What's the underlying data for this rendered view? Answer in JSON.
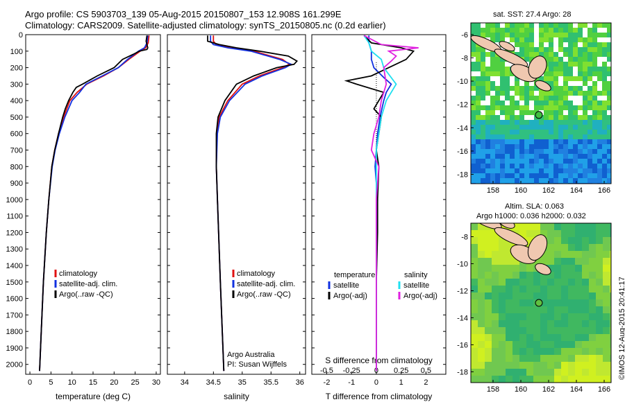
{
  "header": {
    "line1": "Argo profile: CS 5903703_139 05-Aug-2015 20150807_153 12.908S 161.299E",
    "line2": "Climatology: CARS2009. Satellite-adjusted climatology: synTS_20150805.nc (0.2d earlier)"
  },
  "credit": {
    "line1": "Argo Australia",
    "line2": "PI: Susan Wijffels"
  },
  "stamp": "©IMOS 12-Aug-2015 20:41:17",
  "colors": {
    "climatology": "#e01010",
    "satellite": "#1030e0",
    "argo": "#000000",
    "sal_sat": "#20e0f0",
    "sal_argo": "#e020e0"
  },
  "chart_data": [
    {
      "type": "line",
      "xlabel": "temperature (deg C)",
      "xlim": [
        -1,
        31
      ],
      "ylim": [
        2060,
        0
      ],
      "xticks": [
        "0",
        "5",
        "10",
        "15",
        "20",
        "25",
        "30"
      ],
      "xtick_values": [
        0,
        5,
        10,
        15,
        20,
        25,
        30
      ],
      "yticks": [
        "0",
        "100",
        "200",
        "300",
        "400",
        "500",
        "600",
        "700",
        "800",
        "900",
        "1000",
        "1100",
        "1200",
        "1300",
        "1400",
        "1500",
        "1600",
        "1700",
        "1800",
        "1900",
        "2000"
      ],
      "ytick_values": [
        0,
        100,
        200,
        300,
        400,
        500,
        600,
        700,
        800,
        900,
        1000,
        1100,
        1200,
        1300,
        1400,
        1500,
        1600,
        1700,
        1800,
        1900,
        2000
      ],
      "legend": [
        "climatology",
        "satellite-adj. clim.",
        "Argo(..raw -QC)"
      ],
      "series": [
        {
          "name": "climatology",
          "color": "#e01010",
          "depth": [
            5,
            50,
            80,
            100,
            150,
            200,
            250,
            300,
            350,
            400,
            500,
            600,
            700,
            800,
            1000,
            1200,
            1500,
            1800,
            2040
          ],
          "values": [
            28.3,
            28.1,
            27.5,
            26.2,
            23.5,
            21.0,
            17.5,
            13.5,
            11.2,
            9.5,
            8.0,
            6.8,
            5.9,
            5.2,
            4.5,
            3.9,
            3.2,
            2.7,
            2.3
          ]
        },
        {
          "name": "satellite-adj. clim.",
          "color": "#1030e0",
          "depth": [
            5,
            50,
            80,
            100,
            150,
            200,
            250,
            300,
            350,
            400,
            500,
            600,
            700,
            800,
            1000,
            1200,
            1500,
            1800,
            2040
          ],
          "values": [
            28.0,
            27.8,
            27.2,
            25.8,
            23.2,
            21.0,
            17.2,
            13.3,
            11.8,
            10.0,
            8.3,
            7.0,
            6.0,
            5.3,
            4.5,
            3.9,
            3.2,
            2.7,
            2.3
          ]
        },
        {
          "name": "Argo(..raw -QC)",
          "color": "#000000",
          "depth": [
            5,
            40,
            80,
            90,
            100,
            120,
            150,
            200,
            250,
            300,
            320,
            350,
            400,
            450,
            500,
            600,
            700,
            800,
            1000,
            1200,
            1500,
            1800,
            2040
          ],
          "values": [
            27.8,
            27.6,
            28.0,
            27.8,
            26.0,
            24.5,
            22.0,
            20.0,
            16.0,
            12.5,
            11.0,
            10.2,
            9.2,
            8.4,
            7.8,
            6.8,
            5.9,
            5.2,
            4.5,
            3.9,
            3.2,
            2.7,
            2.3
          ]
        }
      ]
    },
    {
      "type": "line",
      "xlabel": "salinity",
      "xlim": [
        33.7,
        36.1
      ],
      "ylim": [
        2060,
        0
      ],
      "xticks": [
        "34",
        "34.5",
        "35",
        "35.5",
        "36"
      ],
      "xtick_values": [
        34,
        34.5,
        35,
        35.5,
        36
      ],
      "legend": [
        "climatology",
        "satellite-adj. clim.",
        "Argo(..raw -QC)"
      ],
      "series": [
        {
          "name": "climatology",
          "color": "#e01010",
          "depth": [
            5,
            40,
            60,
            80,
            100,
            150,
            180,
            200,
            250,
            300,
            400,
            500,
            600,
            800,
            1000,
            1500,
            2040
          ],
          "values": [
            34.5,
            34.5,
            34.55,
            34.8,
            35.2,
            35.7,
            35.82,
            35.7,
            35.3,
            35.0,
            34.75,
            34.6,
            34.56,
            34.55,
            34.57,
            34.62,
            34.68
          ]
        },
        {
          "name": "satellite-adj. clim.",
          "color": "#1030e0",
          "depth": [
            5,
            40,
            60,
            80,
            100,
            150,
            180,
            200,
            250,
            300,
            400,
            500,
            600,
            800,
            1000,
            1500,
            2040
          ],
          "values": [
            34.45,
            34.45,
            34.5,
            34.75,
            35.15,
            35.65,
            35.85,
            35.75,
            35.35,
            35.05,
            34.78,
            34.62,
            34.57,
            34.55,
            34.57,
            34.62,
            34.68
          ]
        },
        {
          "name": "Argo(..raw -QC)",
          "color": "#000000",
          "depth": [
            5,
            40,
            60,
            80,
            100,
            130,
            160,
            180,
            200,
            250,
            300,
            400,
            500,
            600,
            800,
            1000,
            1500,
            2040
          ],
          "values": [
            34.4,
            34.4,
            34.6,
            34.9,
            35.3,
            35.8,
            35.95,
            35.9,
            35.6,
            35.2,
            34.9,
            34.7,
            34.58,
            34.55,
            34.55,
            34.57,
            34.62,
            34.68
          ]
        }
      ]
    },
    {
      "type": "line",
      "xlabel": "T difference from climatology",
      "xlabel_top": "S difference from climatology",
      "xlim": [
        -2.6,
        2.8
      ],
      "ylim": [
        2060,
        0
      ],
      "xticks": [
        "-2",
        "-1",
        "0",
        "1",
        "2"
      ],
      "xtick_values": [
        -2,
        -1,
        0,
        1,
        2
      ],
      "s_xticks": [
        "-0.5",
        "-0.25",
        "0",
        "0.25",
        "0.5"
      ],
      "s_xtick_positions": [
        -2,
        -1,
        0,
        1,
        2
      ],
      "legend_headers": [
        "temperature",
        "salinity"
      ],
      "legend": [
        "satellite",
        "Argo(-adj)",
        "satellite",
        "Argo(-adj)"
      ],
      "series": [
        {
          "name": "satellite",
          "group": "temperature",
          "color": "#1030e0",
          "depth": [
            5,
            50,
            100,
            150,
            200,
            260,
            300,
            350,
            400,
            500,
            600,
            700,
            800,
            1000,
            1200,
            1500,
            1800,
            2040
          ],
          "values": [
            -0.3,
            -0.3,
            -0.2,
            -0.2,
            -0.1,
            0.3,
            0.6,
            0.4,
            0.3,
            0.15,
            0.05,
            0,
            -0.05,
            0.05,
            0,
            0,
            0,
            0
          ]
        },
        {
          "name": "Argo(-adj)",
          "group": "temperature",
          "color": "#000000",
          "depth": [
            5,
            50,
            80,
            100,
            150,
            200,
            250,
            280,
            300,
            350,
            400,
            450,
            500,
            600,
            700,
            800,
            1000,
            1200,
            1500,
            1800,
            2040
          ],
          "values": [
            -0.5,
            -0.2,
            1.0,
            1.5,
            1.2,
            0.5,
            -0.2,
            -1.2,
            -0.8,
            0.3,
            0.1,
            -0.1,
            0.2,
            0.1,
            0,
            0.1,
            0.05,
            0.05,
            0,
            0,
            0
          ]
        },
        {
          "name": "satellite",
          "group": "salinity",
          "color": "#20e0f0",
          "depth": [
            5,
            50,
            100,
            150,
            200,
            300,
            400,
            500,
            600,
            700,
            800,
            1000,
            1500,
            2040
          ],
          "values": [
            -0.5,
            -0.3,
            -0.2,
            0.2,
            0.3,
            0.8,
            0.4,
            0.2,
            0.1,
            0,
            0,
            0,
            0,
            0
          ]
        },
        {
          "name": "Argo(-adj)",
          "group": "salinity",
          "color": "#e020e0",
          "depth": [
            5,
            60,
            80,
            100,
            130,
            160,
            200,
            300,
            400,
            500,
            600,
            700,
            800,
            1000,
            1500,
            2040
          ],
          "values": [
            -0.5,
            0.2,
            1.7,
            0.5,
            0.8,
            0.6,
            0.3,
            0.4,
            0.2,
            0.1,
            -0.1,
            -0.2,
            0.1,
            0,
            0,
            0
          ]
        }
      ]
    },
    {
      "type": "heatmap",
      "title": "sat. SST: 27.4 Argo: 28",
      "xticks": [
        "158",
        "160",
        "162",
        "164",
        "166"
      ],
      "xtick_values": [
        158,
        160,
        162,
        164,
        166
      ],
      "yticks": [
        "-6",
        "-8",
        "-10",
        "-12",
        "-14",
        "-16",
        "-18"
      ],
      "ytick_values": [
        -6,
        -8,
        -10,
        -12,
        -14,
        -16,
        -18
      ],
      "xlim": [
        156.4,
        166.5
      ],
      "ylim": [
        -18.8,
        -5.0
      ],
      "marker": {
        "lon": 161.3,
        "lat": -12.9
      }
    },
    {
      "type": "heatmap",
      "title": "Altim. SLA: 0.063",
      "subtitle": "Argo h1000: 0.036 h2000: 0.032",
      "xticks": [
        "158",
        "160",
        "162",
        "164",
        "166"
      ],
      "xtick_values": [
        158,
        160,
        162,
        164,
        166
      ],
      "yticks": [
        "-8",
        "-10",
        "-12",
        "-14",
        "-16",
        "-18"
      ],
      "ytick_values": [
        -8,
        -10,
        -12,
        -14,
        -16,
        -18
      ],
      "xlim": [
        156.4,
        166.5
      ],
      "ylim": [
        -18.8,
        -7.0
      ],
      "marker": {
        "lon": 161.3,
        "lat": -12.9
      }
    }
  ]
}
